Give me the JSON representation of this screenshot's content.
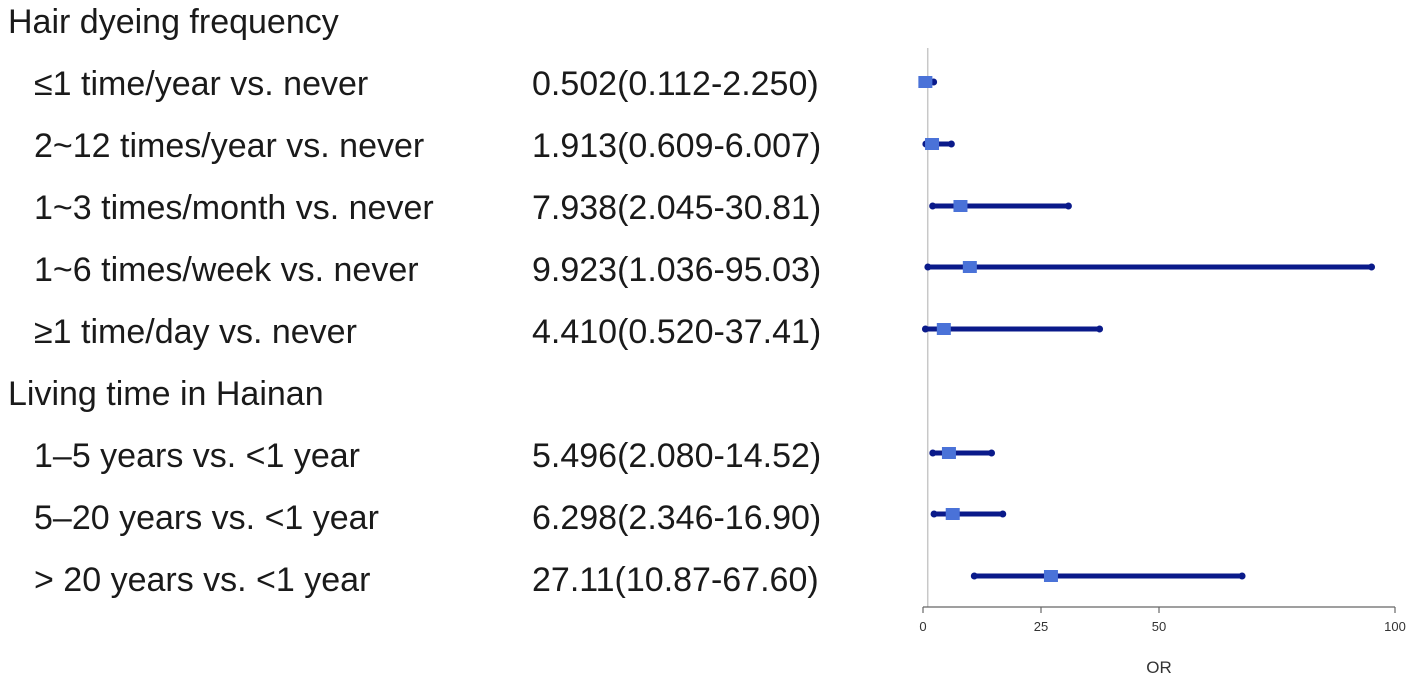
{
  "chart_data": {
    "type": "forest",
    "xlabel": "OR",
    "xlim": [
      0,
      100
    ],
    "xticks": [
      0,
      25,
      50,
      100
    ],
    "reference_line": 1,
    "colors": {
      "ci": "#0a1a8a",
      "point": "#4a72d8",
      "refline": "#c8c8c8"
    },
    "groups": [
      {
        "header": "Hair dyeing frequency",
        "rows": [
          {
            "label": "≤1 time/year vs. never",
            "text": "0.502(0.112-2.250)",
            "or": 0.502,
            "lo": 0.112,
            "hi": 2.25
          },
          {
            "label": "2~12 times/year vs. never",
            "text": "1.913(0.609-6.007)",
            "or": 1.913,
            "lo": 0.609,
            "hi": 6.007
          },
          {
            "label": "1~3 times/month vs. never",
            "text": "7.938(2.045-30.81)",
            "or": 7.938,
            "lo": 2.045,
            "hi": 30.81
          },
          {
            "label": "1~6 times/week vs. never",
            "text": "9.923(1.036-95.03)",
            "or": 9.923,
            "lo": 1.036,
            "hi": 95.03
          },
          {
            "label": "≥1 time/day vs. never",
            "text": "4.410(0.520-37.41)",
            "or": 4.41,
            "lo": 0.52,
            "hi": 37.41
          }
        ]
      },
      {
        "header": "Living time in Hainan",
        "rows": [
          {
            "label": "1–5 years vs. <1 year",
            "text": "5.496(2.080-14.52)",
            "or": 5.496,
            "lo": 2.08,
            "hi": 14.52
          },
          {
            "label": "5–20 years vs. <1 year",
            "text": "6.298(2.346-16.90)",
            "or": 6.298,
            "lo": 2.346,
            "hi": 16.9
          },
          {
            "label": "> 20 years vs. <1 year",
            "text": "27.11(10.87-67.60)",
            "or": 27.11,
            "lo": 10.87,
            "hi": 67.6
          }
        ]
      }
    ]
  }
}
